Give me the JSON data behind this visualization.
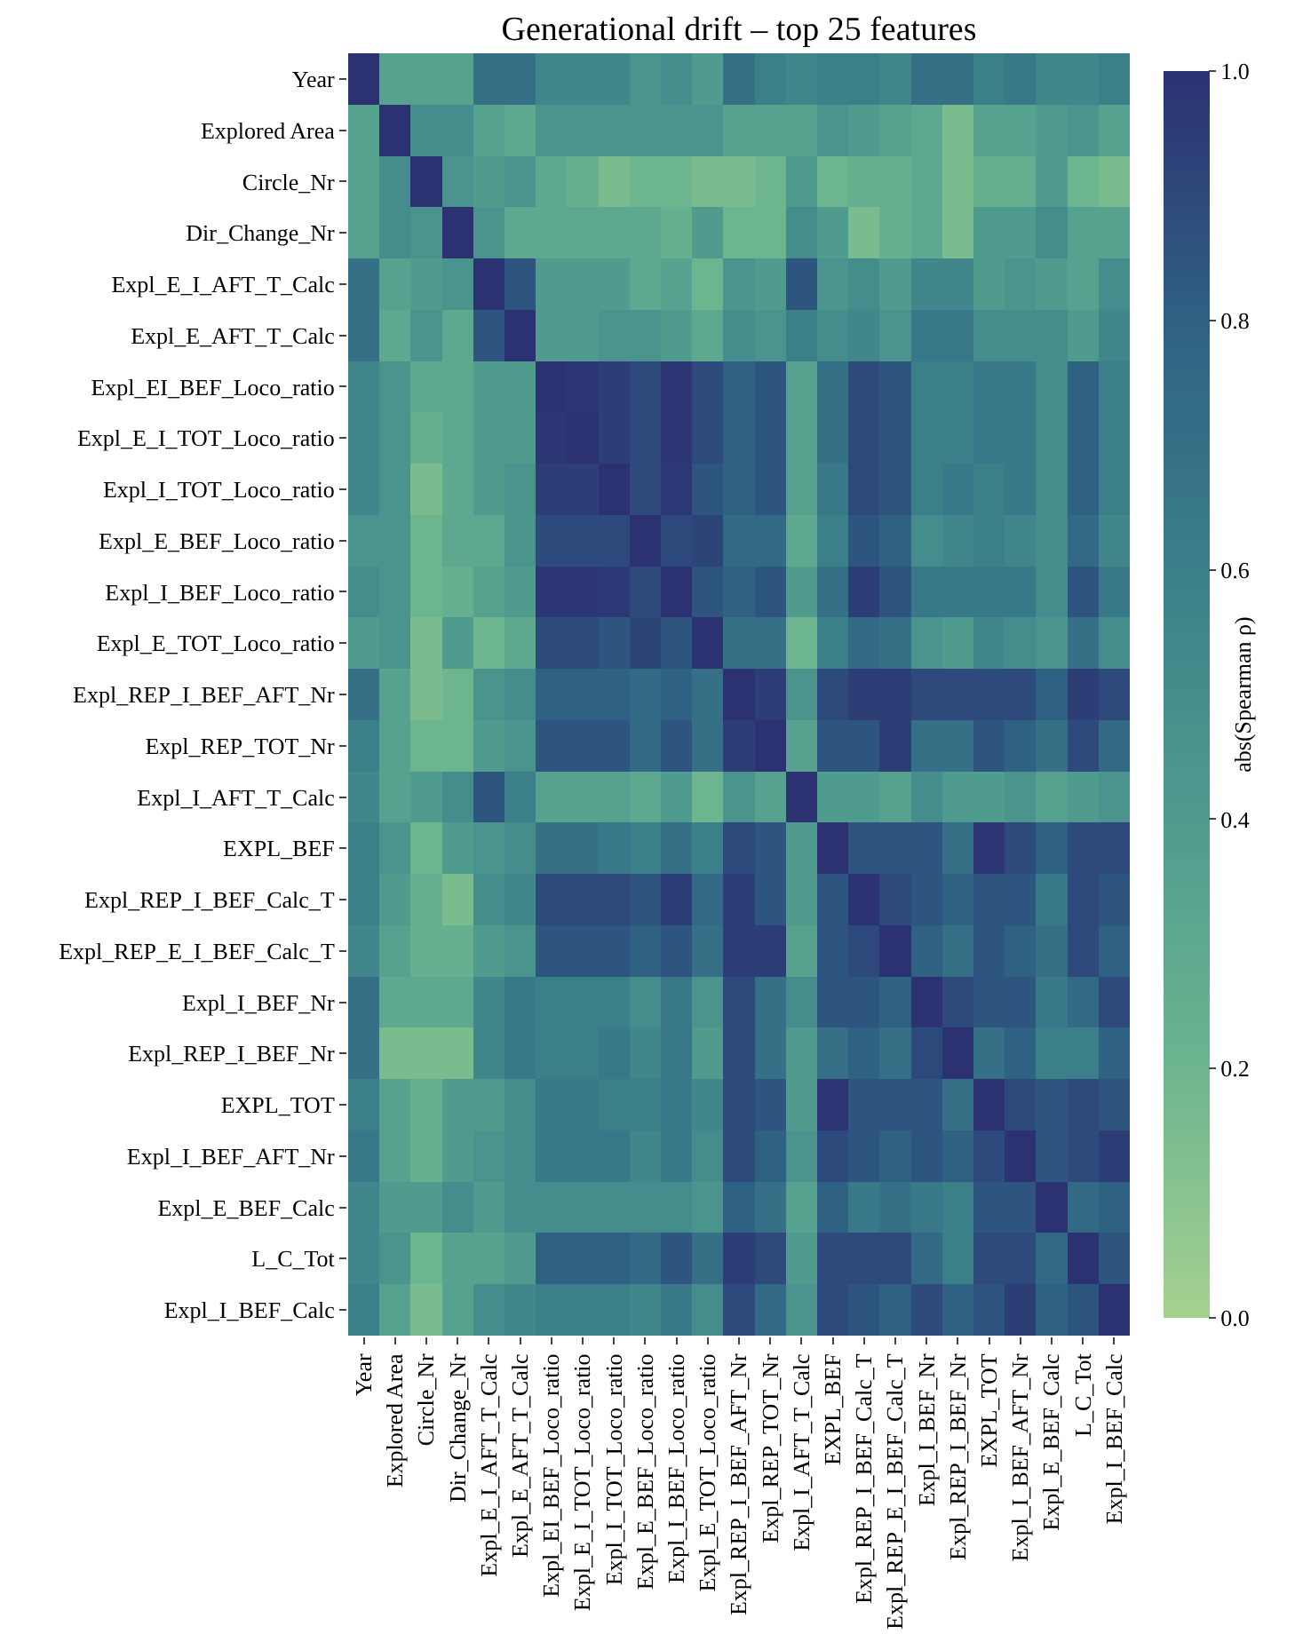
{
  "chart_data": {
    "type": "heatmap",
    "title": "Generational drift – top 25 features",
    "clabel": "abs(Spearman ρ)",
    "categories": [
      "Year",
      "Explored Area",
      "Circle_Nr",
      "Dir_Change_Nr",
      "Expl_E_I_AFT_T_Calc",
      "Expl_E_AFT_T_Calc",
      "Expl_EI_BEF_Loco_ratio",
      "Expl_E_I_TOT_Loco_ratio",
      "Expl_I_TOT_Loco_ratio",
      "Expl_E_BEF_Loco_ratio",
      "Expl_I_BEF_Loco_ratio",
      "Expl_E_TOT_Loco_ratio",
      "Expl_REP_I_BEF_AFT_Nr",
      "Expl_REP_TOT_Nr",
      "Expl_I_AFT_T_Calc",
      "EXPL_BEF",
      "Expl_REP_I_BEF_Calc_T",
      "Expl_REP_E_I_BEF_Calc_T",
      "Expl_I_BEF_Nr",
      "Expl_REP_I_BEF_Nr",
      "EXPL_TOT",
      "Expl_I_BEF_AFT_Nr",
      "Expl_E_BEF_Calc",
      "L_C_Tot",
      "Expl_I_BEF_Calc"
    ],
    "y_categories": [
      "Year",
      "Explored Area",
      "Circle_Nr",
      "Dir_Change_Nr",
      "Expl_E_I_AFT_T_Calc",
      "Expl_E_AFT_T_Calc",
      "Expl_EI_BEF_Loco_ratio",
      "Expl_E_I_TOT_Loco_ratio",
      "Expl_I_TOT_Loco_ratio",
      "Expl_E_BEF_Loco_ratio",
      "Expl_I_BEF_Loco_ratio",
      "Expl_E_TOT_Loco_ratio",
      "Expl_REP_I_BEF_AFT_Nr",
      "Expl_REP_TOT_Nr",
      "Expl_I_AFT_T_Calc",
      "EXPL_BEF",
      "Expl_REP_I_BEF_Calc_T",
      "Expl_REP_E_I_BEF_Calc_T",
      "Expl_I_BEF_Nr",
      "Expl_REP_I_BEF_Nr",
      "EXPL_TOT",
      "Expl_I_BEF_AFT_Nr",
      "Expl_E_BEF_Calc",
      "L_C_Tot",
      "Expl_I_BEF_Calc"
    ],
    "cells": [
      [
        1,
        0.35,
        0.35,
        0.35,
        0.7,
        0.7,
        0.55,
        0.55,
        0.55,
        0.45,
        0.5,
        0.4,
        0.7,
        0.6,
        0.55,
        0.6,
        0.6,
        0.55,
        0.7,
        0.7,
        0.6,
        0.65,
        0.55,
        0.55,
        0.6
      ],
      [
        0.35,
        1,
        0.5,
        0.5,
        0.35,
        0.3,
        0.45,
        0.45,
        0.45,
        0.45,
        0.45,
        0.45,
        0.35,
        0.35,
        0.35,
        0.45,
        0.4,
        0.35,
        0.3,
        0.15,
        0.35,
        0.35,
        0.4,
        0.45,
        0.35
      ],
      [
        0.35,
        0.5,
        1,
        0.45,
        0.4,
        0.45,
        0.3,
        0.25,
        0.15,
        0.2,
        0.2,
        0.15,
        0.15,
        0.2,
        0.4,
        0.2,
        0.25,
        0.25,
        0.3,
        0.15,
        0.25,
        0.25,
        0.4,
        0.2,
        0.15
      ],
      [
        0.35,
        0.5,
        0.45,
        1,
        0.45,
        0.3,
        0.3,
        0.3,
        0.3,
        0.3,
        0.25,
        0.4,
        0.2,
        0.2,
        0.5,
        0.4,
        0.15,
        0.25,
        0.3,
        0.15,
        0.4,
        0.4,
        0.5,
        0.35,
        0.35
      ],
      [
        0.7,
        0.35,
        0.4,
        0.45,
        1,
        0.85,
        0.4,
        0.4,
        0.4,
        0.3,
        0.35,
        0.2,
        0.45,
        0.4,
        0.85,
        0.45,
        0.5,
        0.4,
        0.55,
        0.55,
        0.4,
        0.45,
        0.4,
        0.35,
        0.5
      ],
      [
        0.7,
        0.3,
        0.45,
        0.3,
        0.85,
        1,
        0.4,
        0.4,
        0.45,
        0.45,
        0.4,
        0.3,
        0.5,
        0.45,
        0.6,
        0.5,
        0.55,
        0.45,
        0.65,
        0.65,
        0.5,
        0.5,
        0.5,
        0.4,
        0.55
      ],
      [
        0.55,
        0.45,
        0.3,
        0.3,
        0.4,
        0.4,
        1,
        0.98,
        0.95,
        0.9,
        0.98,
        0.9,
        0.8,
        0.85,
        0.35,
        0.7,
        0.9,
        0.85,
        0.6,
        0.6,
        0.65,
        0.65,
        0.5,
        0.8,
        0.6
      ],
      [
        0.55,
        0.45,
        0.25,
        0.3,
        0.4,
        0.4,
        0.98,
        1,
        0.95,
        0.9,
        0.98,
        0.9,
        0.8,
        0.85,
        0.35,
        0.7,
        0.9,
        0.85,
        0.6,
        0.6,
        0.65,
        0.65,
        0.5,
        0.8,
        0.6
      ],
      [
        0.55,
        0.45,
        0.15,
        0.3,
        0.4,
        0.45,
        0.95,
        0.95,
        1,
        0.9,
        0.97,
        0.85,
        0.8,
        0.85,
        0.35,
        0.65,
        0.9,
        0.85,
        0.6,
        0.65,
        0.6,
        0.65,
        0.5,
        0.8,
        0.6
      ],
      [
        0.45,
        0.45,
        0.2,
        0.3,
        0.3,
        0.45,
        0.9,
        0.9,
        0.9,
        1,
        0.9,
        0.92,
        0.75,
        0.75,
        0.3,
        0.6,
        0.85,
        0.8,
        0.5,
        0.55,
        0.6,
        0.55,
        0.5,
        0.75,
        0.55
      ],
      [
        0.5,
        0.45,
        0.2,
        0.25,
        0.35,
        0.4,
        0.98,
        0.98,
        0.97,
        0.9,
        1,
        0.85,
        0.8,
        0.85,
        0.4,
        0.7,
        0.95,
        0.85,
        0.65,
        0.65,
        0.65,
        0.65,
        0.5,
        0.85,
        0.65
      ],
      [
        0.4,
        0.45,
        0.15,
        0.4,
        0.2,
        0.3,
        0.9,
        0.9,
        0.85,
        0.92,
        0.85,
        1,
        0.7,
        0.7,
        0.2,
        0.6,
        0.75,
        0.7,
        0.45,
        0.4,
        0.55,
        0.5,
        0.45,
        0.7,
        0.5
      ],
      [
        0.7,
        0.35,
        0.15,
        0.2,
        0.45,
        0.5,
        0.8,
        0.8,
        0.8,
        0.75,
        0.8,
        0.7,
        1,
        0.95,
        0.45,
        0.9,
        0.95,
        0.95,
        0.9,
        0.9,
        0.9,
        0.9,
        0.8,
        0.95,
        0.9
      ],
      [
        0.6,
        0.35,
        0.2,
        0.2,
        0.4,
        0.45,
        0.85,
        0.85,
        0.85,
        0.75,
        0.85,
        0.7,
        0.95,
        1,
        0.35,
        0.85,
        0.85,
        0.95,
        0.7,
        0.7,
        0.85,
        0.8,
        0.7,
        0.9,
        0.75
      ],
      [
        0.55,
        0.35,
        0.4,
        0.5,
        0.85,
        0.6,
        0.35,
        0.35,
        0.35,
        0.3,
        0.4,
        0.2,
        0.45,
        0.35,
        1,
        0.4,
        0.4,
        0.35,
        0.5,
        0.4,
        0.4,
        0.45,
        0.35,
        0.4,
        0.45
      ],
      [
        0.6,
        0.45,
        0.2,
        0.4,
        0.45,
        0.5,
        0.7,
        0.7,
        0.65,
        0.6,
        0.7,
        0.6,
        0.9,
        0.85,
        0.4,
        1,
        0.85,
        0.85,
        0.85,
        0.7,
        0.98,
        0.9,
        0.8,
        0.9,
        0.9
      ],
      [
        0.6,
        0.4,
        0.25,
        0.15,
        0.5,
        0.55,
        0.9,
        0.9,
        0.9,
        0.85,
        0.95,
        0.75,
        0.95,
        0.85,
        0.4,
        0.85,
        1,
        0.9,
        0.85,
        0.8,
        0.85,
        0.85,
        0.65,
        0.9,
        0.85
      ],
      [
        0.55,
        0.35,
        0.25,
        0.25,
        0.4,
        0.45,
        0.85,
        0.85,
        0.85,
        0.8,
        0.85,
        0.7,
        0.95,
        0.95,
        0.35,
        0.85,
        0.9,
        1,
        0.8,
        0.7,
        0.85,
        0.8,
        0.7,
        0.9,
        0.8
      ],
      [
        0.7,
        0.3,
        0.3,
        0.3,
        0.55,
        0.65,
        0.6,
        0.6,
        0.6,
        0.5,
        0.65,
        0.45,
        0.9,
        0.7,
        0.5,
        0.85,
        0.85,
        0.8,
        1,
        0.9,
        0.85,
        0.85,
        0.65,
        0.75,
        0.9
      ],
      [
        0.7,
        0.15,
        0.15,
        0.15,
        0.55,
        0.65,
        0.6,
        0.6,
        0.65,
        0.55,
        0.65,
        0.4,
        0.9,
        0.7,
        0.4,
        0.7,
        0.8,
        0.7,
        0.9,
        1,
        0.7,
        0.8,
        0.6,
        0.6,
        0.8
      ],
      [
        0.6,
        0.35,
        0.25,
        0.4,
        0.4,
        0.5,
        0.65,
        0.65,
        0.6,
        0.6,
        0.65,
        0.55,
        0.9,
        0.85,
        0.4,
        0.98,
        0.85,
        0.85,
        0.85,
        0.7,
        1,
        0.9,
        0.85,
        0.9,
        0.85
      ],
      [
        0.65,
        0.35,
        0.25,
        0.4,
        0.45,
        0.5,
        0.65,
        0.65,
        0.65,
        0.55,
        0.65,
        0.5,
        0.9,
        0.8,
        0.45,
        0.9,
        0.85,
        0.8,
        0.85,
        0.8,
        0.9,
        1,
        0.85,
        0.9,
        0.95
      ],
      [
        0.55,
        0.4,
        0.4,
        0.5,
        0.4,
        0.5,
        0.5,
        0.5,
        0.5,
        0.5,
        0.5,
        0.45,
        0.8,
        0.7,
        0.35,
        0.8,
        0.65,
        0.7,
        0.65,
        0.6,
        0.85,
        0.85,
        1,
        0.75,
        0.8
      ],
      [
        0.55,
        0.45,
        0.2,
        0.35,
        0.35,
        0.4,
        0.8,
        0.8,
        0.8,
        0.75,
        0.85,
        0.7,
        0.95,
        0.9,
        0.4,
        0.9,
        0.9,
        0.9,
        0.75,
        0.6,
        0.9,
        0.9,
        0.75,
        1,
        0.85
      ],
      [
        0.6,
        0.35,
        0.15,
        0.35,
        0.5,
        0.55,
        0.6,
        0.6,
        0.6,
        0.55,
        0.65,
        0.5,
        0.9,
        0.75,
        0.45,
        0.9,
        0.85,
        0.8,
        0.9,
        0.8,
        0.85,
        0.95,
        0.8,
        0.85,
        1
      ]
    ],
    "clim": [
      0,
      1
    ],
    "cticks": [
      {
        "value": 0,
        "label": "0.0"
      },
      {
        "value": 0.2,
        "label": "0.2"
      },
      {
        "value": 0.4,
        "label": "0.4"
      },
      {
        "value": 0.6,
        "label": "0.6"
      },
      {
        "value": 0.8,
        "label": "0.8"
      },
      {
        "value": 1,
        "label": "1.0"
      }
    ]
  }
}
